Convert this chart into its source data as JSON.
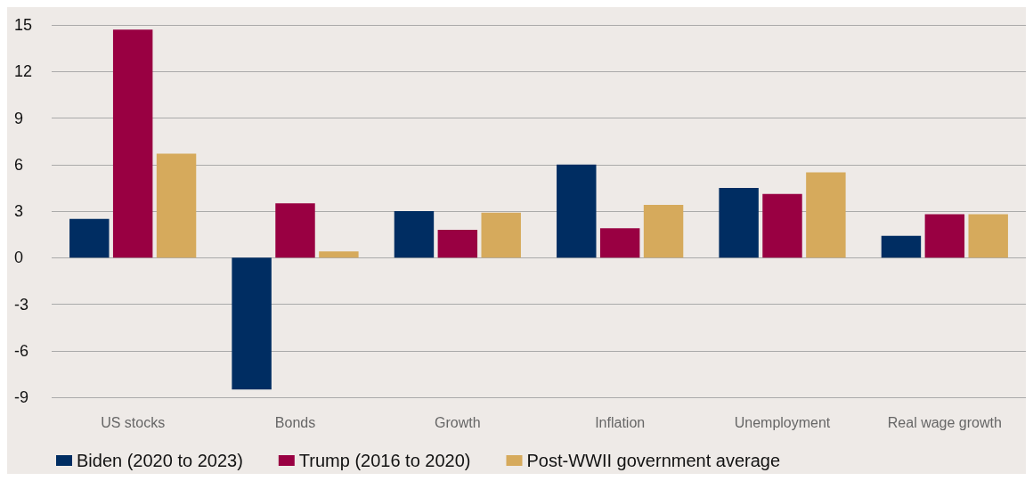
{
  "chart_data": {
    "type": "bar",
    "categories": [
      "US stocks",
      "Bonds",
      "Growth",
      "Inflation",
      "Unemployment",
      "Real wage growth"
    ],
    "series": [
      {
        "name": "Biden (2020 to 2023)",
        "color": "#002d62",
        "values": [
          2.5,
          -8.5,
          3.0,
          6.0,
          4.5,
          1.4
        ]
      },
      {
        "name": "Trump (2016 to 2020)",
        "color": "#990042",
        "values": [
          14.7,
          3.5,
          1.8,
          1.9,
          4.1,
          2.8
        ]
      },
      {
        "name": "Post-WWII government average",
        "color": "#d6aa5c",
        "values": [
          6.7,
          0.4,
          2.9,
          3.4,
          5.5,
          2.8
        ]
      }
    ],
    "ylim": [
      -9,
      15
    ],
    "yticks": [
      -9,
      -6,
      -3,
      0,
      3,
      6,
      9,
      12,
      15
    ],
    "grid": "y",
    "legend": "bottom left"
  }
}
